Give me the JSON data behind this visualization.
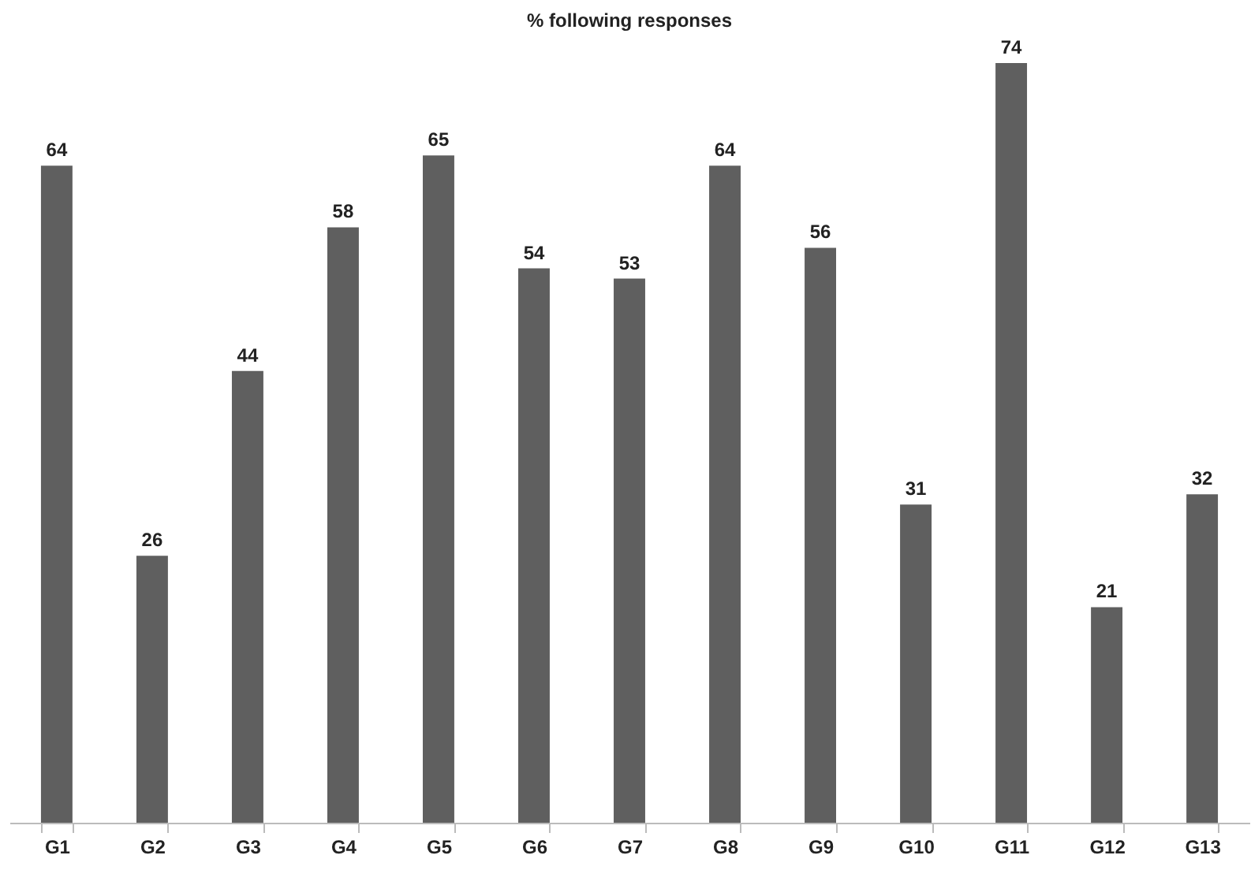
{
  "chart_data": {
    "type": "bar",
    "title": "% following responses",
    "categories": [
      "G1",
      "G2",
      "G3",
      "G4",
      "G5",
      "G6",
      "G7",
      "G8",
      "G9",
      "G10",
      "G11",
      "G12",
      "G13"
    ],
    "values": [
      64,
      26,
      44,
      58,
      65,
      54,
      53,
      64,
      56,
      31,
      74,
      21,
      32
    ],
    "color": "#5f5f5f",
    "data_labels": true,
    "grid": false
  }
}
